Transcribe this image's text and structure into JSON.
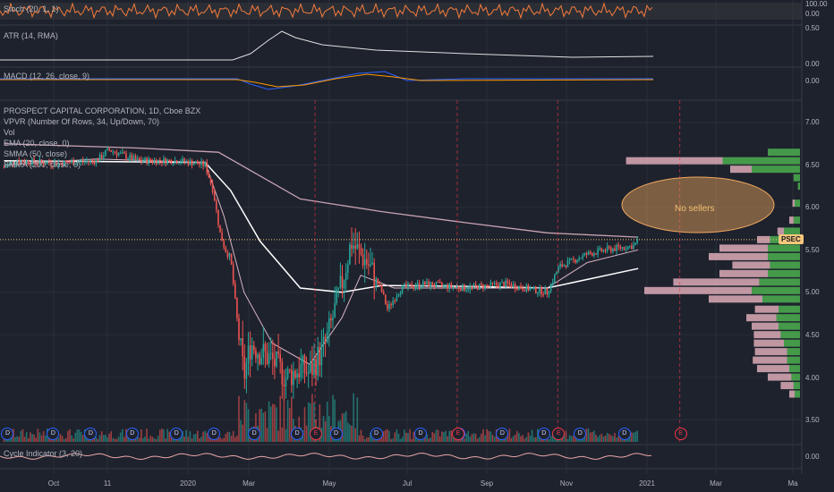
{
  "header": {
    "stoch": "Stoch (20, 1, 1)",
    "atr": "ATR (14, RMA)",
    "macd": "MACD (12, 26, close, 9)",
    "main_lines": [
      "PROSPECT CAPITAL CORPORATION, 1D, Cboe BZX",
      "VPVR (Number Of Rows, 34, Up/Down, 70)",
      "Vol",
      "EMA (20, close, 0)",
      "SMMA (50, close)",
      "SMMA (200, close, 0)"
    ],
    "cycle": "Cycle Indicator (3, 20)"
  },
  "axis": {
    "stoch_ticks": [
      "100.00",
      "0.00"
    ],
    "atr_ticks": [
      "0.50",
      "0.00"
    ],
    "macd_ticks": [
      "0.00"
    ],
    "price_ticks": [
      "7.00",
      "6.50",
      "6.00",
      "5.50",
      "5.00",
      "4.50",
      "4.00",
      "3.50"
    ],
    "cycle_ticks": [
      "0.00"
    ],
    "x_ticks": [
      "Oct",
      "11",
      "2020",
      "Mar",
      "May",
      "Jul",
      "Sep",
      "Nov",
      "2021",
      "Mar",
      "Ma"
    ]
  },
  "price_tag": "PSEC",
  "annotation": "No sellers",
  "badges": {
    "dividend": "D",
    "earnings": "E"
  },
  "colors": {
    "background": "#1e222d",
    "up": "#26a69a",
    "down": "#ef5350",
    "ema": "#f0f0f0",
    "smma200": "#c9a3b3",
    "stoch": "#f57c3a",
    "macd": "#2962ff",
    "signal": "#ff9800",
    "vpvr_up": "#4caf50",
    "vpvr_down": "#e8b4c0"
  },
  "chart_data": {
    "type": "candlestick",
    "symbol": "PSEC",
    "timeframe": "1D",
    "x_range": [
      "2019-09-20",
      "2021-05-10"
    ],
    "ylim": [
      3.35,
      7.15
    ],
    "last_price": 5.62,
    "price_path": [
      [
        "2019-09-23",
        6.47
      ],
      [
        "2019-10-01",
        6.55
      ],
      [
        "2019-11-01",
        6.52
      ],
      [
        "2019-12-01",
        6.55
      ],
      [
        "2019-12-10",
        6.68
      ],
      [
        "2020-01-01",
        6.55
      ],
      [
        "2020-02-01",
        6.55
      ],
      [
        "2020-02-20",
        6.5
      ],
      [
        "2020-02-26",
        6.2
      ],
      [
        "2020-03-02",
        5.7
      ],
      [
        "2020-03-06",
        5.5
      ],
      [
        "2020-03-10",
        5.4
      ],
      [
        "2020-03-16",
        4.5
      ],
      [
        "2020-03-20",
        4.0
      ],
      [
        "2020-03-25",
        4.4
      ],
      [
        "2020-04-01",
        4.3
      ],
      [
        "2020-04-10",
        4.2
      ],
      [
        "2020-04-20",
        4.0
      ],
      [
        "2020-05-01",
        4.1
      ],
      [
        "2020-05-08",
        4.05
      ],
      [
        "2020-05-20",
        4.4
      ],
      [
        "2020-06-01",
        5.1
      ],
      [
        "2020-06-08",
        5.6
      ],
      [
        "2020-06-12",
        5.5
      ],
      [
        "2020-06-20",
        5.35
      ],
      [
        "2020-07-01",
        5.0
      ],
      [
        "2020-07-05",
        4.8
      ],
      [
        "2020-07-15",
        5.05
      ],
      [
        "2020-08-01",
        5.1
      ],
      [
        "2020-09-01",
        5.05
      ],
      [
        "2020-10-01",
        5.1
      ],
      [
        "2020-10-15",
        5.05
      ],
      [
        "2020-11-01",
        5.0
      ],
      [
        "2020-11-10",
        5.3
      ],
      [
        "2020-12-01",
        5.45
      ],
      [
        "2020-12-15",
        5.5
      ],
      [
        "2021-01-05",
        5.55
      ],
      [
        "2021-01-08",
        5.62
      ]
    ],
    "ema20_path": [
      [
        "2019-09-23",
        6.5
      ],
      [
        "2019-12-01",
        6.57
      ],
      [
        "2020-02-20",
        6.53
      ],
      [
        "2020-03-05",
        5.9
      ],
      [
        "2020-03-20",
        5.0
      ],
      [
        "2020-04-10",
        4.4
      ],
      [
        "2020-05-08",
        4.15
      ],
      [
        "2020-06-01",
        4.7
      ],
      [
        "2020-06-15",
        5.2
      ],
      [
        "2020-07-10",
        5.05
      ],
      [
        "2020-09-01",
        5.05
      ],
      [
        "2020-11-01",
        5.05
      ],
      [
        "2020-12-01",
        5.35
      ],
      [
        "2021-01-08",
        5.5
      ]
    ],
    "smma50_path": [
      [
        "2019-09-23",
        6.55
      ],
      [
        "2020-02-20",
        6.53
      ],
      [
        "2020-03-10",
        6.2
      ],
      [
        "2020-04-01",
        5.6
      ],
      [
        "2020-05-01",
        5.05
      ],
      [
        "2020-06-01",
        5.0
      ],
      [
        "2020-07-01",
        5.08
      ],
      [
        "2020-09-01",
        5.07
      ],
      [
        "2020-11-01",
        5.05
      ],
      [
        "2021-01-08",
        5.28
      ]
    ],
    "smma200_path": [
      [
        "2019-09-23",
        6.75
      ],
      [
        "2020-01-01",
        6.7
      ],
      [
        "2020-03-01",
        6.65
      ],
      [
        "2020-05-01",
        6.1
      ],
      [
        "2020-07-01",
        5.95
      ],
      [
        "2020-09-01",
        5.82
      ],
      [
        "2020-11-01",
        5.7
      ],
      [
        "2021-01-08",
        5.65
      ]
    ],
    "dividend_dates": [
      "2019-09-25",
      "2019-10-29",
      "2019-11-26",
      "2019-12-27",
      "2020-01-29",
      "2020-02-26",
      "2020-03-27",
      "2020-04-28",
      "2020-05-27",
      "2020-06-26",
      "2020-07-29",
      "2020-08-27",
      "2020-09-28",
      "2020-10-29",
      "2020-11-25",
      "2020-12-28"
    ],
    "earnings_dates": [
      "2020-05-12",
      "2020-08-26",
      "2020-11-09",
      "2021-02-08"
    ],
    "vpvr_profile": [
      {
        "price": 6.65,
        "up": 0.3,
        "down": 0.0
      },
      {
        "price": 6.55,
        "up": 0.72,
        "down": 0.9
      },
      {
        "price": 6.45,
        "up": 0.45,
        "down": 0.2
      },
      {
        "price": 6.35,
        "up": 0.06,
        "down": 0.0
      },
      {
        "price": 6.25,
        "up": 0.02,
        "down": 0.0
      },
      {
        "price": 6.05,
        "up": 0.05,
        "down": 0.02
      },
      {
        "price": 5.85,
        "up": 0.06,
        "down": 0.04
      },
      {
        "price": 5.72,
        "up": 0.15,
        "down": 0.06
      },
      {
        "price": 5.62,
        "up": 0.28,
        "down": 0.12
      },
      {
        "price": 5.52,
        "up": 0.3,
        "down": 0.45
      },
      {
        "price": 5.42,
        "up": 0.3,
        "down": 0.55
      },
      {
        "price": 5.32,
        "up": 0.28,
        "down": 0.35
      },
      {
        "price": 5.22,
        "up": 0.3,
        "down": 0.45
      },
      {
        "price": 5.12,
        "up": 0.38,
        "down": 0.8
      },
      {
        "price": 5.02,
        "up": 0.45,
        "down": 1.0
      },
      {
        "price": 4.92,
        "up": 0.35,
        "down": 0.5
      },
      {
        "price": 4.8,
        "up": 0.2,
        "down": 0.22
      },
      {
        "price": 4.7,
        "up": 0.22,
        "down": 0.28
      },
      {
        "price": 4.6,
        "up": 0.2,
        "down": 0.25
      },
      {
        "price": 4.5,
        "up": 0.18,
        "down": 0.25
      },
      {
        "price": 4.4,
        "up": 0.15,
        "down": 0.28
      },
      {
        "price": 4.3,
        "up": 0.12,
        "down": 0.3
      },
      {
        "price": 4.2,
        "up": 0.12,
        "down": 0.32
      },
      {
        "price": 4.1,
        "up": 0.1,
        "down": 0.3
      },
      {
        "price": 4.0,
        "up": 0.08,
        "down": 0.22
      },
      {
        "price": 3.9,
        "up": 0.06,
        "down": 0.12
      },
      {
        "price": 3.8,
        "up": 0.05,
        "down": 0.05
      }
    ]
  }
}
